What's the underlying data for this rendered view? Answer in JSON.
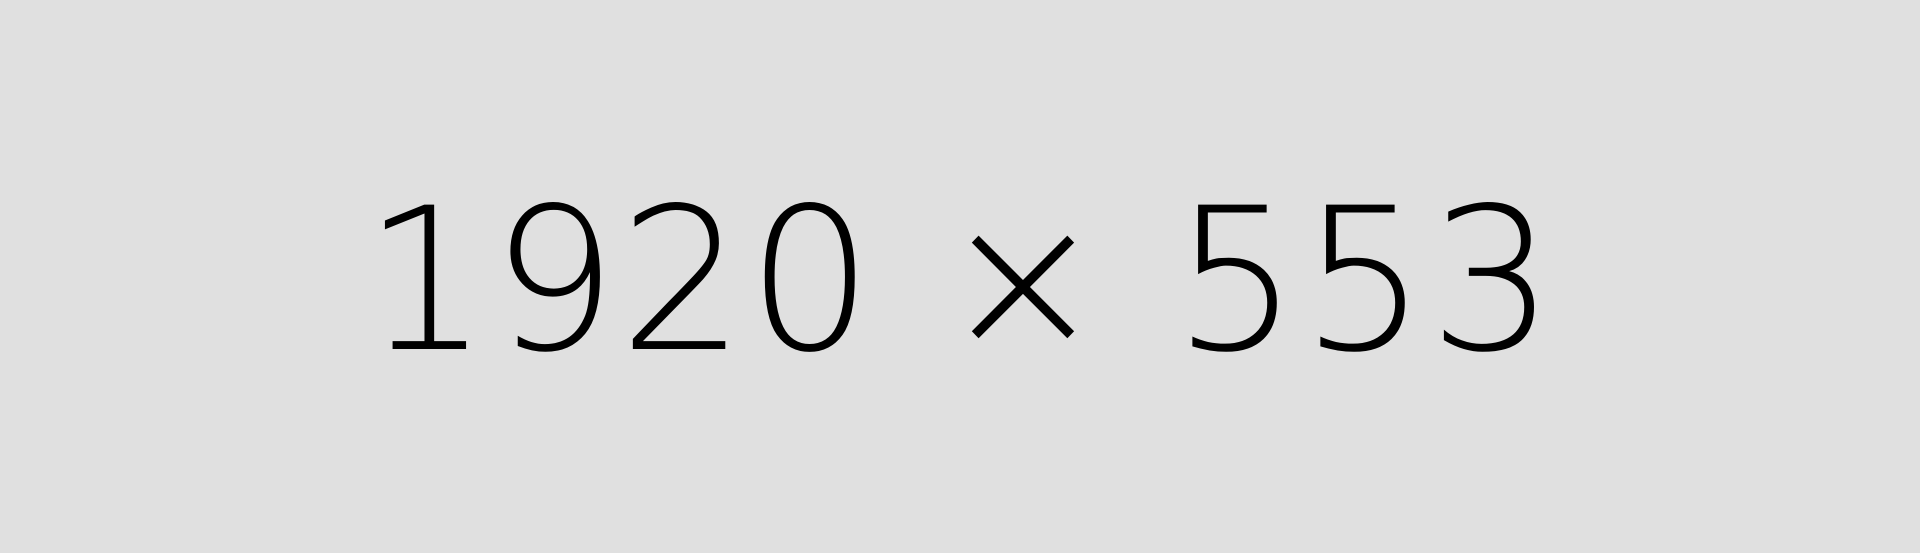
{
  "placeholder": {
    "label": "1920 × 553",
    "background_color": "#e0e0e0",
    "text_color": "#000000"
  }
}
